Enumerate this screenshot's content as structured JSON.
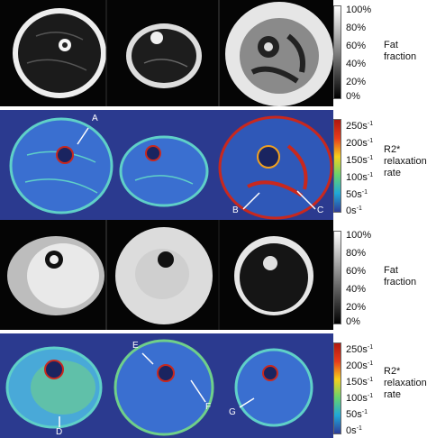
{
  "scales": {
    "fat_ticks": [
      "100%",
      "80%",
      "60%",
      "40%",
      "20%",
      "0%"
    ],
    "r2_ticks": [
      "250s",
      "200s",
      "150s",
      "100s",
      "50s",
      "0s"
    ],
    "r2_unit_exp": "-1"
  },
  "labels": {
    "fat_1": "Fat",
    "fat_2": "fraction",
    "r2_1": "R2*",
    "r2_2": "relaxation",
    "r2_3": "rate"
  },
  "markers": [
    "A",
    "B",
    "C",
    "D",
    "E",
    "F",
    "G"
  ],
  "colors": {
    "map_background": "#2b3a8f",
    "hot": "#c8281e",
    "mid": "#5fd0c8",
    "cool": "#3a6fd0"
  }
}
